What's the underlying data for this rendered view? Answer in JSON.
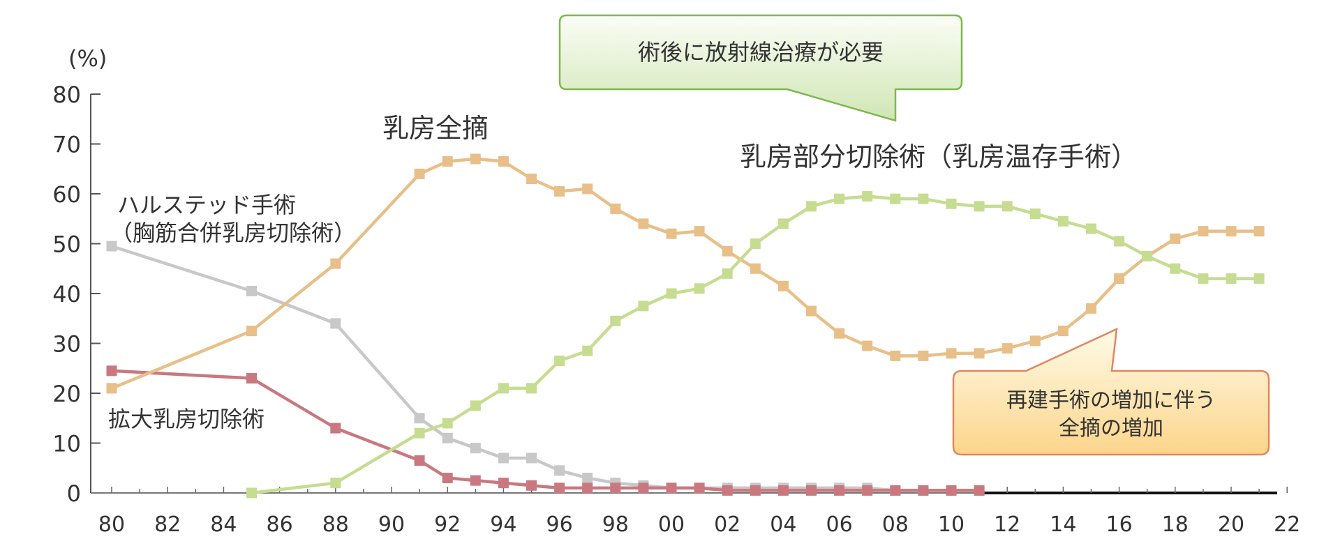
{
  "chart_data": {
    "type": "line",
    "ylabel": "(%)",
    "ylim": [
      0,
      80
    ],
    "xlim": [
      80,
      122
    ],
    "yticks": [
      0,
      10,
      20,
      30,
      40,
      50,
      60,
      70,
      80
    ],
    "xticks": [
      "80",
      "82",
      "84",
      "86",
      "88",
      "90",
      "92",
      "94",
      "96",
      "98",
      "00",
      "02",
      "04",
      "06",
      "08",
      "10",
      "12",
      "14",
      "16",
      "18",
      "20",
      "22"
    ],
    "grid": false,
    "series": [
      {
        "name": "ハルステッド手術（胸筋合併乳房切除術）",
        "label_lines": [
          "ハルステッド手術",
          "（胸筋合併乳房切除術）"
        ],
        "color": "#c8c8c8",
        "x": [
          80,
          85,
          88,
          91,
          92,
          93,
          94,
          95,
          96,
          97,
          98,
          99,
          100,
          101,
          102,
          103,
          104,
          105,
          106,
          107,
          108,
          109,
          110,
          111
        ],
        "y": [
          49.5,
          40.5,
          34,
          15,
          11,
          9,
          7,
          7,
          4.5,
          3,
          2,
          1.5,
          1,
          1,
          1,
          1,
          1,
          1,
          1,
          1,
          0.5,
          0.5,
          0.5,
          0.5
        ]
      },
      {
        "name": "拡大乳房切除術",
        "label_lines": [
          "拡大乳房切除術"
        ],
        "color": "#c97880",
        "x": [
          80,
          85,
          88,
          91,
          92,
          93,
          94,
          95,
          96,
          97,
          98,
          99,
          100,
          101,
          102,
          103,
          104,
          105,
          106,
          107,
          108,
          109,
          110,
          111
        ],
        "y": [
          24.5,
          23,
          13,
          6.5,
          3,
          2.5,
          2,
          1.5,
          1,
          1,
          1,
          1,
          1,
          1,
          0.5,
          0.5,
          0.5,
          0.5,
          0.5,
          0.5,
          0.5,
          0.5,
          0.5,
          0.5
        ]
      },
      {
        "name": "乳房全摘",
        "label_lines": [
          "乳房全摘"
        ],
        "color": "#e8bf88",
        "x": [
          80,
          85,
          88,
          91,
          92,
          93,
          94,
          95,
          96,
          97,
          98,
          99,
          100,
          101,
          102,
          103,
          104,
          105,
          106,
          107,
          108,
          109,
          110,
          111,
          112,
          113,
          114,
          115,
          116,
          117,
          118,
          119,
          120,
          121
        ],
        "y": [
          21,
          32.5,
          46,
          64,
          66.5,
          67,
          66.5,
          63,
          60.5,
          61,
          57,
          54,
          52,
          52.5,
          48.5,
          45,
          41.5,
          36.5,
          32,
          29.5,
          27.5,
          27.5,
          28,
          28,
          29,
          30.5,
          32.5,
          37,
          43,
          47.5,
          51,
          52.5,
          52.5,
          52.5
        ]
      },
      {
        "name": "乳房部分切除術（乳房温存手術）",
        "label_lines": [
          "乳房部分切除術（乳房温存手術）"
        ],
        "color": "#c6dc90",
        "x": [
          85,
          88,
          91,
          92,
          93,
          94,
          95,
          96,
          97,
          98,
          99,
          100,
          101,
          102,
          103,
          104,
          105,
          106,
          107,
          108,
          109,
          110,
          111,
          112,
          113,
          114,
          115,
          116,
          117,
          118,
          119,
          120,
          121
        ],
        "y": [
          0,
          2,
          12,
          14,
          17.5,
          21,
          21,
          26.5,
          28.5,
          34.5,
          37.5,
          40,
          41,
          44,
          50,
          54,
          57.5,
          59,
          59.5,
          59,
          59,
          58,
          57.5,
          57.5,
          56,
          54.5,
          53,
          50.5,
          47.5,
          45,
          43,
          43,
          43
        ]
      }
    ],
    "annotations": [
      {
        "id": "rt",
        "lines": [
          "術後に放射線治療が必要"
        ]
      },
      {
        "id": "recon",
        "lines": [
          "再建手術の増加に伴う",
          "全摘の増加"
        ]
      }
    ]
  }
}
